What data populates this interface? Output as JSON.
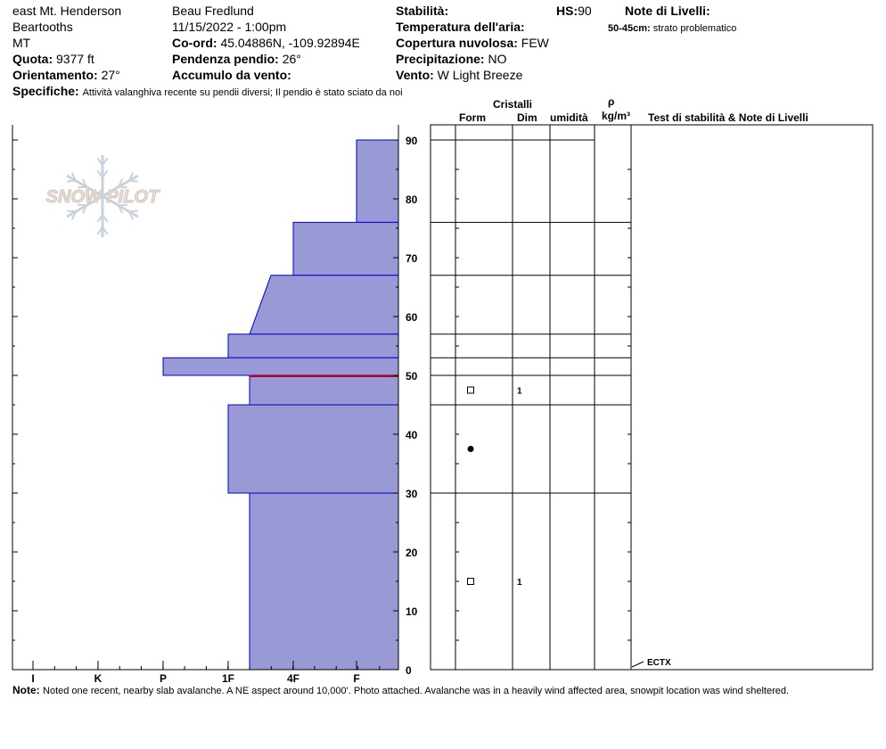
{
  "header": {
    "location": "east Mt. Henderson",
    "range": "Beartooths",
    "state": "MT",
    "elevation_label": "Quota:",
    "elevation": "9377 ft",
    "aspect_label": "Orientamento:",
    "aspect": "27°",
    "observer": "Beau  Fredlund",
    "datetime": "11/15/2022 - 1:00pm",
    "coord_label": "Co-ord:",
    "coord": "45.04886N, -109.92894E",
    "slope_label": "Pendenza pendio:",
    "slope": "26°",
    "wind_loading_label": "Accumulo da vento:",
    "stability_label": "Stabilità:",
    "hs_label": "HS:",
    "hs": "90",
    "air_temp_label": "Temperatura dell'aria:",
    "sky_label": "Copertura nuvolosa:",
    "sky": "FEW",
    "precip_label": "Precipitazione:",
    "precip": "NO",
    "wind_label": "Vento:",
    "wind": "W Light Breeze",
    "layer_notes_label": "Note di Livelli:",
    "layer_note_range": "50-45cm:",
    "layer_note_text": "strato problematico",
    "specifics_label": "Specifiche:",
    "specifics": "Attività valanghiva recente su pendii diversi; Il pendio è stato sciato da noi"
  },
  "logo": "SNOW PILOT",
  "table_headers": {
    "crystals": "Cristalli",
    "form": "Form",
    "size": "Dim",
    "moisture": "umidità",
    "rho": "ρ",
    "density": "kg/m³",
    "tests": "Test di stabilità & Note di Livelli"
  },
  "hardness_labels": [
    "I",
    "K",
    "P",
    "1F",
    "4F",
    "F"
  ],
  "depth_ticks": [
    "0",
    "10",
    "20",
    "30",
    "40",
    "50",
    "60",
    "70",
    "80",
    "90"
  ],
  "colors": {
    "layer_fill": "#9999d6",
    "layer_stroke": "#0000cc",
    "problem_layer": "#cc0000"
  },
  "layers": [
    {
      "top": 90,
      "bottom": 76,
      "hardness_top": "F",
      "hardness_bottom": "F"
    },
    {
      "top": 76,
      "bottom": 67,
      "hardness_top": "4F",
      "hardness_bottom": "4F"
    },
    {
      "top": 67,
      "bottom": 57,
      "hardness_top": "4F-",
      "hardness_bottom": "1F+"
    },
    {
      "top": 57,
      "bottom": 53,
      "hardness_top": "1F",
      "hardness_bottom": "1F"
    },
    {
      "top": 53,
      "bottom": 50,
      "hardness_top": "P",
      "hardness_bottom": "P"
    },
    {
      "top": 50,
      "bottom": 45,
      "hardness_top": "1F+",
      "hardness_bottom": "1F+"
    },
    {
      "top": 45,
      "bottom": 30,
      "hardness_top": "1F",
      "hardness_bottom": "1F"
    },
    {
      "top": 30,
      "bottom": 0,
      "hardness_top": "1F+",
      "hardness_bottom": "1F+"
    }
  ],
  "problem_layer_depth": 50,
  "grains": [
    {
      "depth": 47.5,
      "form": "faceted-square",
      "size": "1"
    },
    {
      "depth": 37.5,
      "form": "rounded-dot",
      "size": ""
    },
    {
      "depth": 15,
      "form": "faceted-square",
      "size": "1"
    }
  ],
  "tests": [
    {
      "depth": 0,
      "label": "ECTX"
    }
  ],
  "note_label": "Note:",
  "note": "Noted one recent, nearby slab avalanche.  A NE aspect around 10,000'.  Photo attached.  Avalanche was in a heavily wind affected area, snowpit location was wind sheltered."
}
